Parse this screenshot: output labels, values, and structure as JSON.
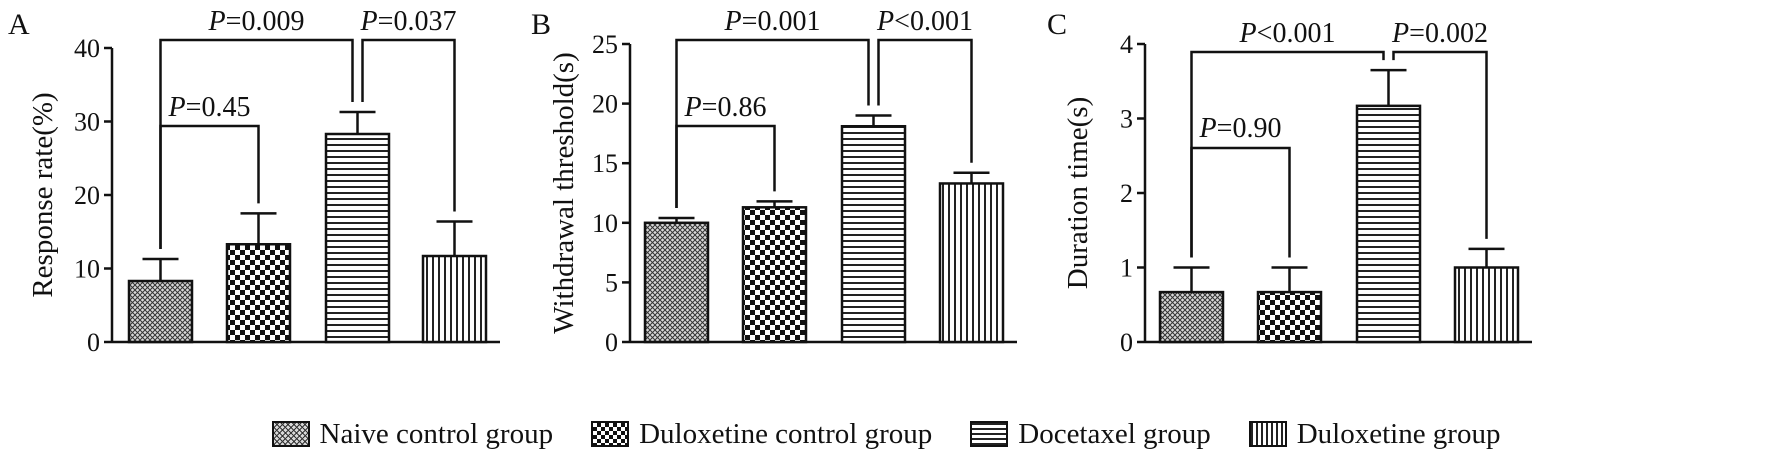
{
  "chart_data": [
    {
      "type": "bar",
      "panel_label": "A",
      "ylabel": "Response rate(%)",
      "ylim": [
        0,
        40
      ],
      "yticks": [
        "0",
        "10",
        "20",
        "30",
        "40"
      ],
      "categories": [
        "Naive control group",
        "Duloxetine control group",
        "Docetaxel group",
        "Duloxetine group"
      ],
      "values": [
        8.3,
        13.3,
        28.3,
        11.7
      ],
      "errors": [
        3.0,
        4.2,
        3.0,
        4.7
      ],
      "comparisons": [
        {
          "from": 0,
          "to": 2,
          "p_letter": "P",
          "p_value": "=0.009"
        },
        {
          "from": 2,
          "to": 3,
          "p_letter": "P",
          "p_value": "=0.037"
        },
        {
          "from": 0,
          "to": 1,
          "p_letter": "P",
          "p_value": "=0.45"
        }
      ]
    },
    {
      "type": "bar",
      "panel_label": "B",
      "ylabel": "Withdrawal threshold(s)",
      "ylim": [
        0,
        25
      ],
      "yticks": [
        "0",
        "5",
        "10",
        "15",
        "20",
        "25"
      ],
      "categories": [
        "Naive control group",
        "Duloxetine control group",
        "Docetaxel group",
        "Duloxetine group"
      ],
      "values": [
        10.0,
        11.3,
        18.1,
        13.3
      ],
      "errors": [
        0.4,
        0.5,
        0.9,
        0.9
      ],
      "comparisons": [
        {
          "from": 0,
          "to": 2,
          "p_letter": "P",
          "p_value": "=0.001"
        },
        {
          "from": 2,
          "to": 3,
          "p_letter": "P",
          "p_value": "<0.001"
        },
        {
          "from": 0,
          "to": 1,
          "p_letter": "P",
          "p_value": "=0.86"
        }
      ]
    },
    {
      "type": "bar",
      "panel_label": "C",
      "ylabel": "Duration time(s)",
      "ylim": [
        0,
        4
      ],
      "yticks": [
        "0",
        "1",
        "2",
        "3",
        "4"
      ],
      "categories": [
        "Naive control group",
        "Duloxetine control group",
        "Docetaxel group",
        "Duloxetine group"
      ],
      "values": [
        0.67,
        0.67,
        3.17,
        1.0
      ],
      "errors": [
        0.33,
        0.33,
        0.48,
        0.25
      ],
      "comparisons": [
        {
          "from": 0,
          "to": 2,
          "p_letter": "P",
          "p_value": "<0.001"
        },
        {
          "from": 2,
          "to": 3,
          "p_letter": "P",
          "p_value": "=0.002"
        },
        {
          "from": 0,
          "to": 1,
          "p_letter": "P",
          "p_value": "=0.90"
        }
      ]
    }
  ],
  "legend": [
    {
      "label": "Naive control group",
      "pattern": "crosshatch"
    },
    {
      "label": "Duloxetine control group",
      "pattern": "checker"
    },
    {
      "label": "Docetaxel group",
      "pattern": "horizontal"
    },
    {
      "label": "Duloxetine group",
      "pattern": "vertical"
    }
  ]
}
